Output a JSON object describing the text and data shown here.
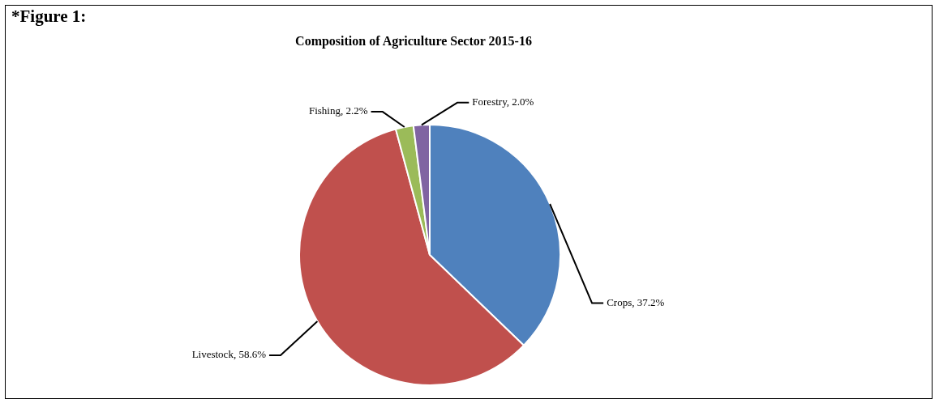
{
  "chart_data": {
    "type": "pie",
    "title": "Composition of Agriculture Sector 2015-16",
    "annotations": [
      "*Figure 1:"
    ],
    "categories": [
      "Crops",
      "Livestock",
      "Fishing",
      "Forestry"
    ],
    "values": [
      37.2,
      58.6,
      2.2,
      2.0
    ],
    "value_labels": [
      "37.2%",
      "58.6%",
      "2.2%",
      "2.0%"
    ],
    "colors": [
      "#4f81bd",
      "#c0504d",
      "#9bbb59",
      "#8064a2"
    ],
    "legend": false
  }
}
